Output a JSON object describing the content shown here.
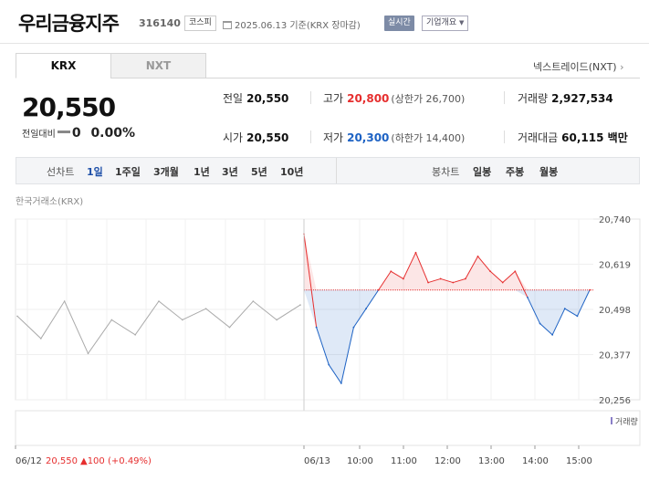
{
  "header": {
    "stock_name": "우리금융지주",
    "stock_code": "316140",
    "market": "코스피",
    "date_basis": "2025.06.13 기준(KRX 장마감)",
    "realtime": "실시간",
    "company_info": "기업개요"
  },
  "tabs": {
    "krx": "KRX",
    "nxt": "NXT"
  },
  "nxt_link": "넥스트레이드(NXT)",
  "price": {
    "current": "20,550",
    "change_label": "전일대비",
    "change_value": "0",
    "change_pct": "0.00%"
  },
  "stats": {
    "prev_label": "전일",
    "prev": "20,550",
    "high_label": "고가",
    "high": "20,800",
    "upper_limit": "(상한가 26,700)",
    "volume_label": "거래량",
    "volume": "2,927,534",
    "open_label": "시가",
    "open": "20,550",
    "low_label": "저가",
    "low": "20,300",
    "lower_limit": "(하한가 14,400)",
    "amount_label": "거래대금",
    "amount": "60,115 백만"
  },
  "period_bar": {
    "line_label": "선차트",
    "periods": [
      "1일",
      "1주일",
      "3개월",
      "1년",
      "3년",
      "5년",
      "10년"
    ],
    "candle_label": "봉차트",
    "candles": [
      "일봉",
      "주봉",
      "월봉"
    ]
  },
  "colors": {
    "up": "#e62e2e",
    "down": "#1d62c4",
    "prev_day": "#aaaaaa"
  },
  "chart_data": {
    "type": "line",
    "exchange_label": "한국거래소(KRX)",
    "y_ticks": [
      "20,740",
      "20,619",
      "20,498",
      "20,377",
      "20,256"
    ],
    "ylim": [
      20256,
      20740
    ],
    "baseline": 20550,
    "volume_label": "거래량",
    "x_ticks": [
      "06/12",
      "06/13",
      "10:00",
      "11:00",
      "12:00",
      "13:00",
      "14:00",
      "15:00"
    ],
    "prev_day_summary": {
      "date": "06/12",
      "close": "20,550",
      "change": "▲100",
      "change_pct": "(+0.49%)"
    },
    "series": [
      {
        "x": [
          "06/12",
          "06/12",
          "06/12",
          "06/12",
          "06/12",
          "06/12",
          "06/12",
          "06/12",
          "06/12",
          "06/12",
          "06/12",
          "06/12",
          "06/12"
        ],
        "values": [
          20480,
          20420,
          20520,
          20380,
          20470,
          20430,
          20520,
          20470,
          20500,
          20450,
          20520,
          20470,
          20510
        ]
      },
      {
        "x": [
          "09:00",
          "09:05",
          "09:15",
          "09:30",
          "09:45",
          "10:00",
          "10:10",
          "10:30",
          "10:50",
          "11:00",
          "11:30",
          "12:00",
          "12:30",
          "13:00",
          "13:15",
          "13:30",
          "13:45",
          "14:00",
          "14:10",
          "14:20",
          "14:40",
          "15:00",
          "15:20",
          "15:30"
        ],
        "values": [
          20700,
          20450,
          20350,
          20300,
          20450,
          20500,
          20550,
          20600,
          20580,
          20650,
          20570,
          20580,
          20570,
          20580,
          20640,
          20600,
          20570,
          20600,
          20530,
          20460,
          20430,
          20500,
          20480,
          20550
        ]
      }
    ]
  }
}
